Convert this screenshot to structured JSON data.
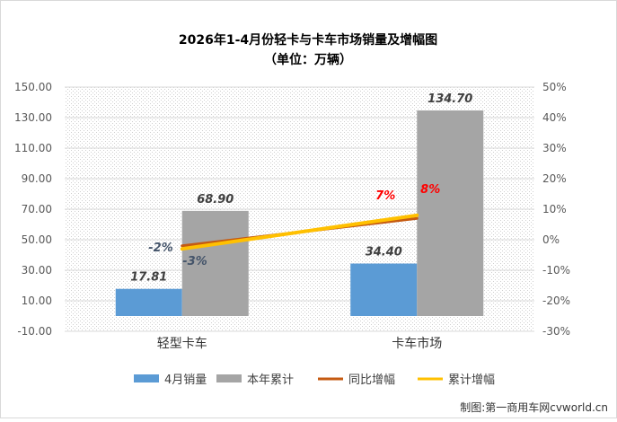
{
  "chart_data": {
    "type": "bar",
    "title": "2026年1-4月份轻卡与卡车市场销量及增幅图",
    "subtitle": "（单位：万辆）",
    "categories": [
      "轻型卡车",
      "卡车市场"
    ],
    "ylim": [
      -10,
      150
    ],
    "y_ticks": [
      "150.00",
      "130.00",
      "110.00",
      "90.00",
      "70.00",
      "50.00",
      "30.00",
      "10.00",
      "-10.00"
    ],
    "y2lim": [
      -30,
      50
    ],
    "y2_ticks": [
      "50%",
      "40%",
      "30%",
      "20%",
      "10%",
      "0%",
      "-10%",
      "-20%",
      "-30%"
    ],
    "grid": true,
    "legend_position": "bottom",
    "series": [
      {
        "name": "4月销量",
        "type": "bar",
        "axis": "left",
        "color": "#5b9bd5",
        "values": [
          17.81,
          34.4
        ],
        "labels": [
          "17.81",
          "34.40"
        ]
      },
      {
        "name": "本年累计",
        "type": "bar",
        "axis": "left",
        "color": "#a5a5a5",
        "values": [
          68.9,
          134.7
        ],
        "labels": [
          "68.90",
          "134.70"
        ]
      },
      {
        "name": "同比增幅",
        "type": "line",
        "axis": "right",
        "color": "#c55a11",
        "values": [
          -2,
          7
        ],
        "labels": [
          "-2%",
          "7%"
        ]
      },
      {
        "name": "累计增幅",
        "type": "line",
        "axis": "right",
        "color": "#ffc000",
        "values": [
          -3,
          8
        ],
        "labels": [
          "-3%",
          "8%"
        ]
      }
    ],
    "label_colors": {
      "negative": "#44546a",
      "positive": "#ff0000"
    }
  },
  "footer": {
    "source": "制图:第一商用车网cvworld.cn"
  }
}
